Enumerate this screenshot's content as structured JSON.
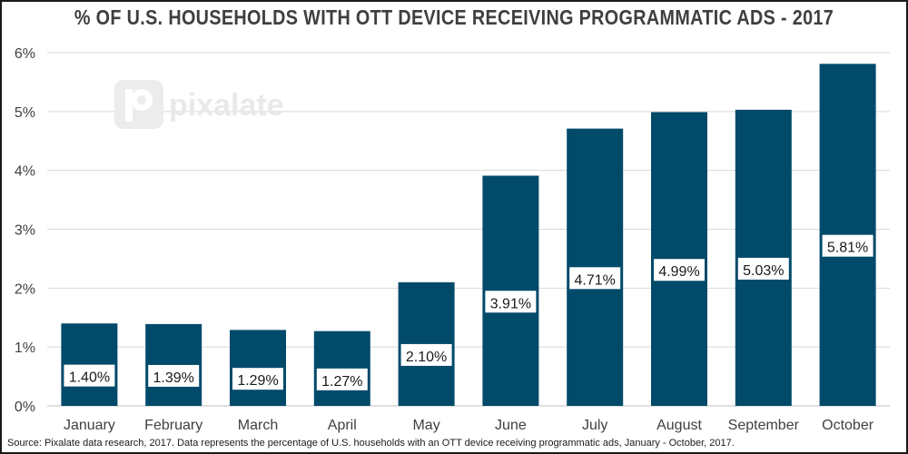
{
  "chart_data": {
    "type": "bar",
    "title": "% OF U.S. HOUSEHOLDS WITH OTT DEVICE RECEIVING PROGRAMMATIC ADS - 2017",
    "categories": [
      "January",
      "February",
      "March",
      "April",
      "May",
      "June",
      "July",
      "August",
      "September",
      "October"
    ],
    "values": [
      1.4,
      1.39,
      1.29,
      1.27,
      2.1,
      3.91,
      4.71,
      4.99,
      5.03,
      5.81
    ],
    "data_labels": [
      "1.40%",
      "1.39%",
      "1.29%",
      "1.27%",
      "2.10%",
      "3.91%",
      "4.71%",
      "4.99%",
      "5.03%",
      "5.81%"
    ],
    "y_ticks": [
      0,
      1,
      2,
      3,
      4,
      5,
      6
    ],
    "y_tick_labels": [
      "0%",
      "1%",
      "2%",
      "3%",
      "4%",
      "5%",
      "6%"
    ],
    "ylim": [
      0,
      6
    ],
    "xlabel": "",
    "ylabel": "",
    "grid": true,
    "colors": {
      "bar": "#024a6a",
      "grid": "#d9d9d9",
      "label_bg": "#ffffff",
      "text": "#404040"
    },
    "source": "Source: Pixalate data research, 2017. Data represents the percentage of U.S. households with an OTT device receiving programmatic ads, January - October, 2017."
  },
  "watermark": {
    "text": "pixalate",
    "icon": "pixalate-logo-icon"
  }
}
